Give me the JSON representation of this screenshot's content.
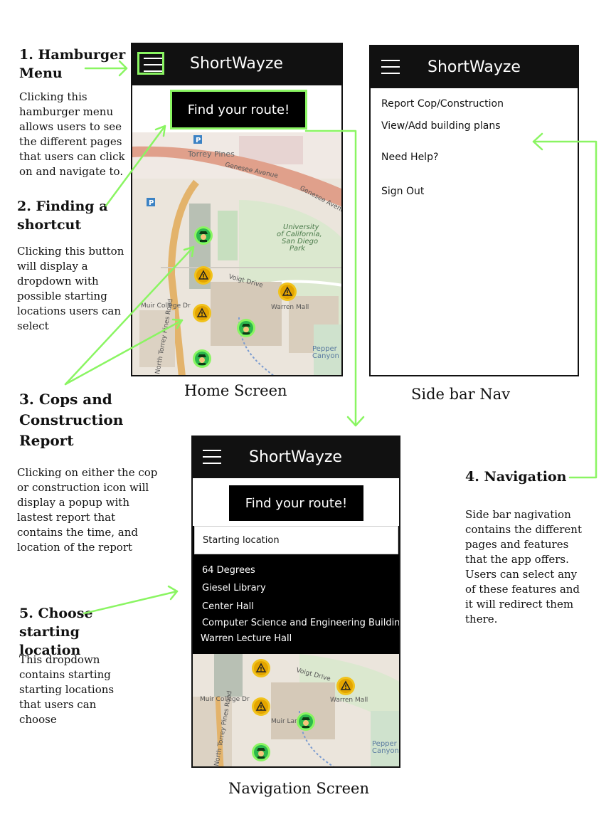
{
  "app": {
    "brand": "ShortWayze",
    "find_button": "Find your route!"
  },
  "annotations": {
    "a1": {
      "title": "1. Hamburger Menu",
      "body": "Clicking this hamburger menu allows users to see the different pages that users can click on and navigate to."
    },
    "a2": {
      "title": "2. Finding a shortcut",
      "body": "Clicking this button will display a dropdown with possible starting locations users can select"
    },
    "a3": {
      "title": "3. Cops and Construction Report",
      "body": "Clicking on either the cop or construction icon will display a popup with lastest report that contains the time, and location of the report"
    },
    "a4": {
      "title": "4. Navigation",
      "body": "Side bar nagivation contains the different pages and features that the app offers. Users can select any of these features and it will redirect them there."
    },
    "a5": {
      "title": "5. Choose starting location",
      "body": "This dropdown contains starting starting locations that users can choose"
    }
  },
  "captions": {
    "home": "Home Screen",
    "sidebar": "Side bar Nav",
    "navigation": "Navigation Screen"
  },
  "sidebar_items": [
    "Report Cop/Construction",
    "View/Add building plans",
    "Need Help?",
    "Sign Out"
  ],
  "dropdown": {
    "label": "Starting location",
    "options": [
      "64 Degrees",
      "Giesel Library",
      "Center Hall",
      "Computer Science and Engineering Building",
      "Warren Lecture Hall"
    ]
  },
  "map_labels": {
    "torrey_pines": "Torrey Pines",
    "genesee_1": "Genesee Avenue",
    "genesee_2": "Genesee Avenue",
    "university": "University",
    "of_california": "of California,",
    "san_diego": "San Diego",
    "park": "Park",
    "voigt": "Voigt Drive",
    "warren": "Warren Mall",
    "muir": "Muir College Dr",
    "north_torrey": "North Torrey Pines Road",
    "pepper": "Pepper",
    "canyon": "Canyon",
    "muir_lane": "Muir Lane",
    "p": "P"
  },
  "colors": {
    "accent_green": "#8af562",
    "bar": "#111111",
    "cop_green": "#2db84c",
    "construction_yellow": "#e3a400"
  }
}
